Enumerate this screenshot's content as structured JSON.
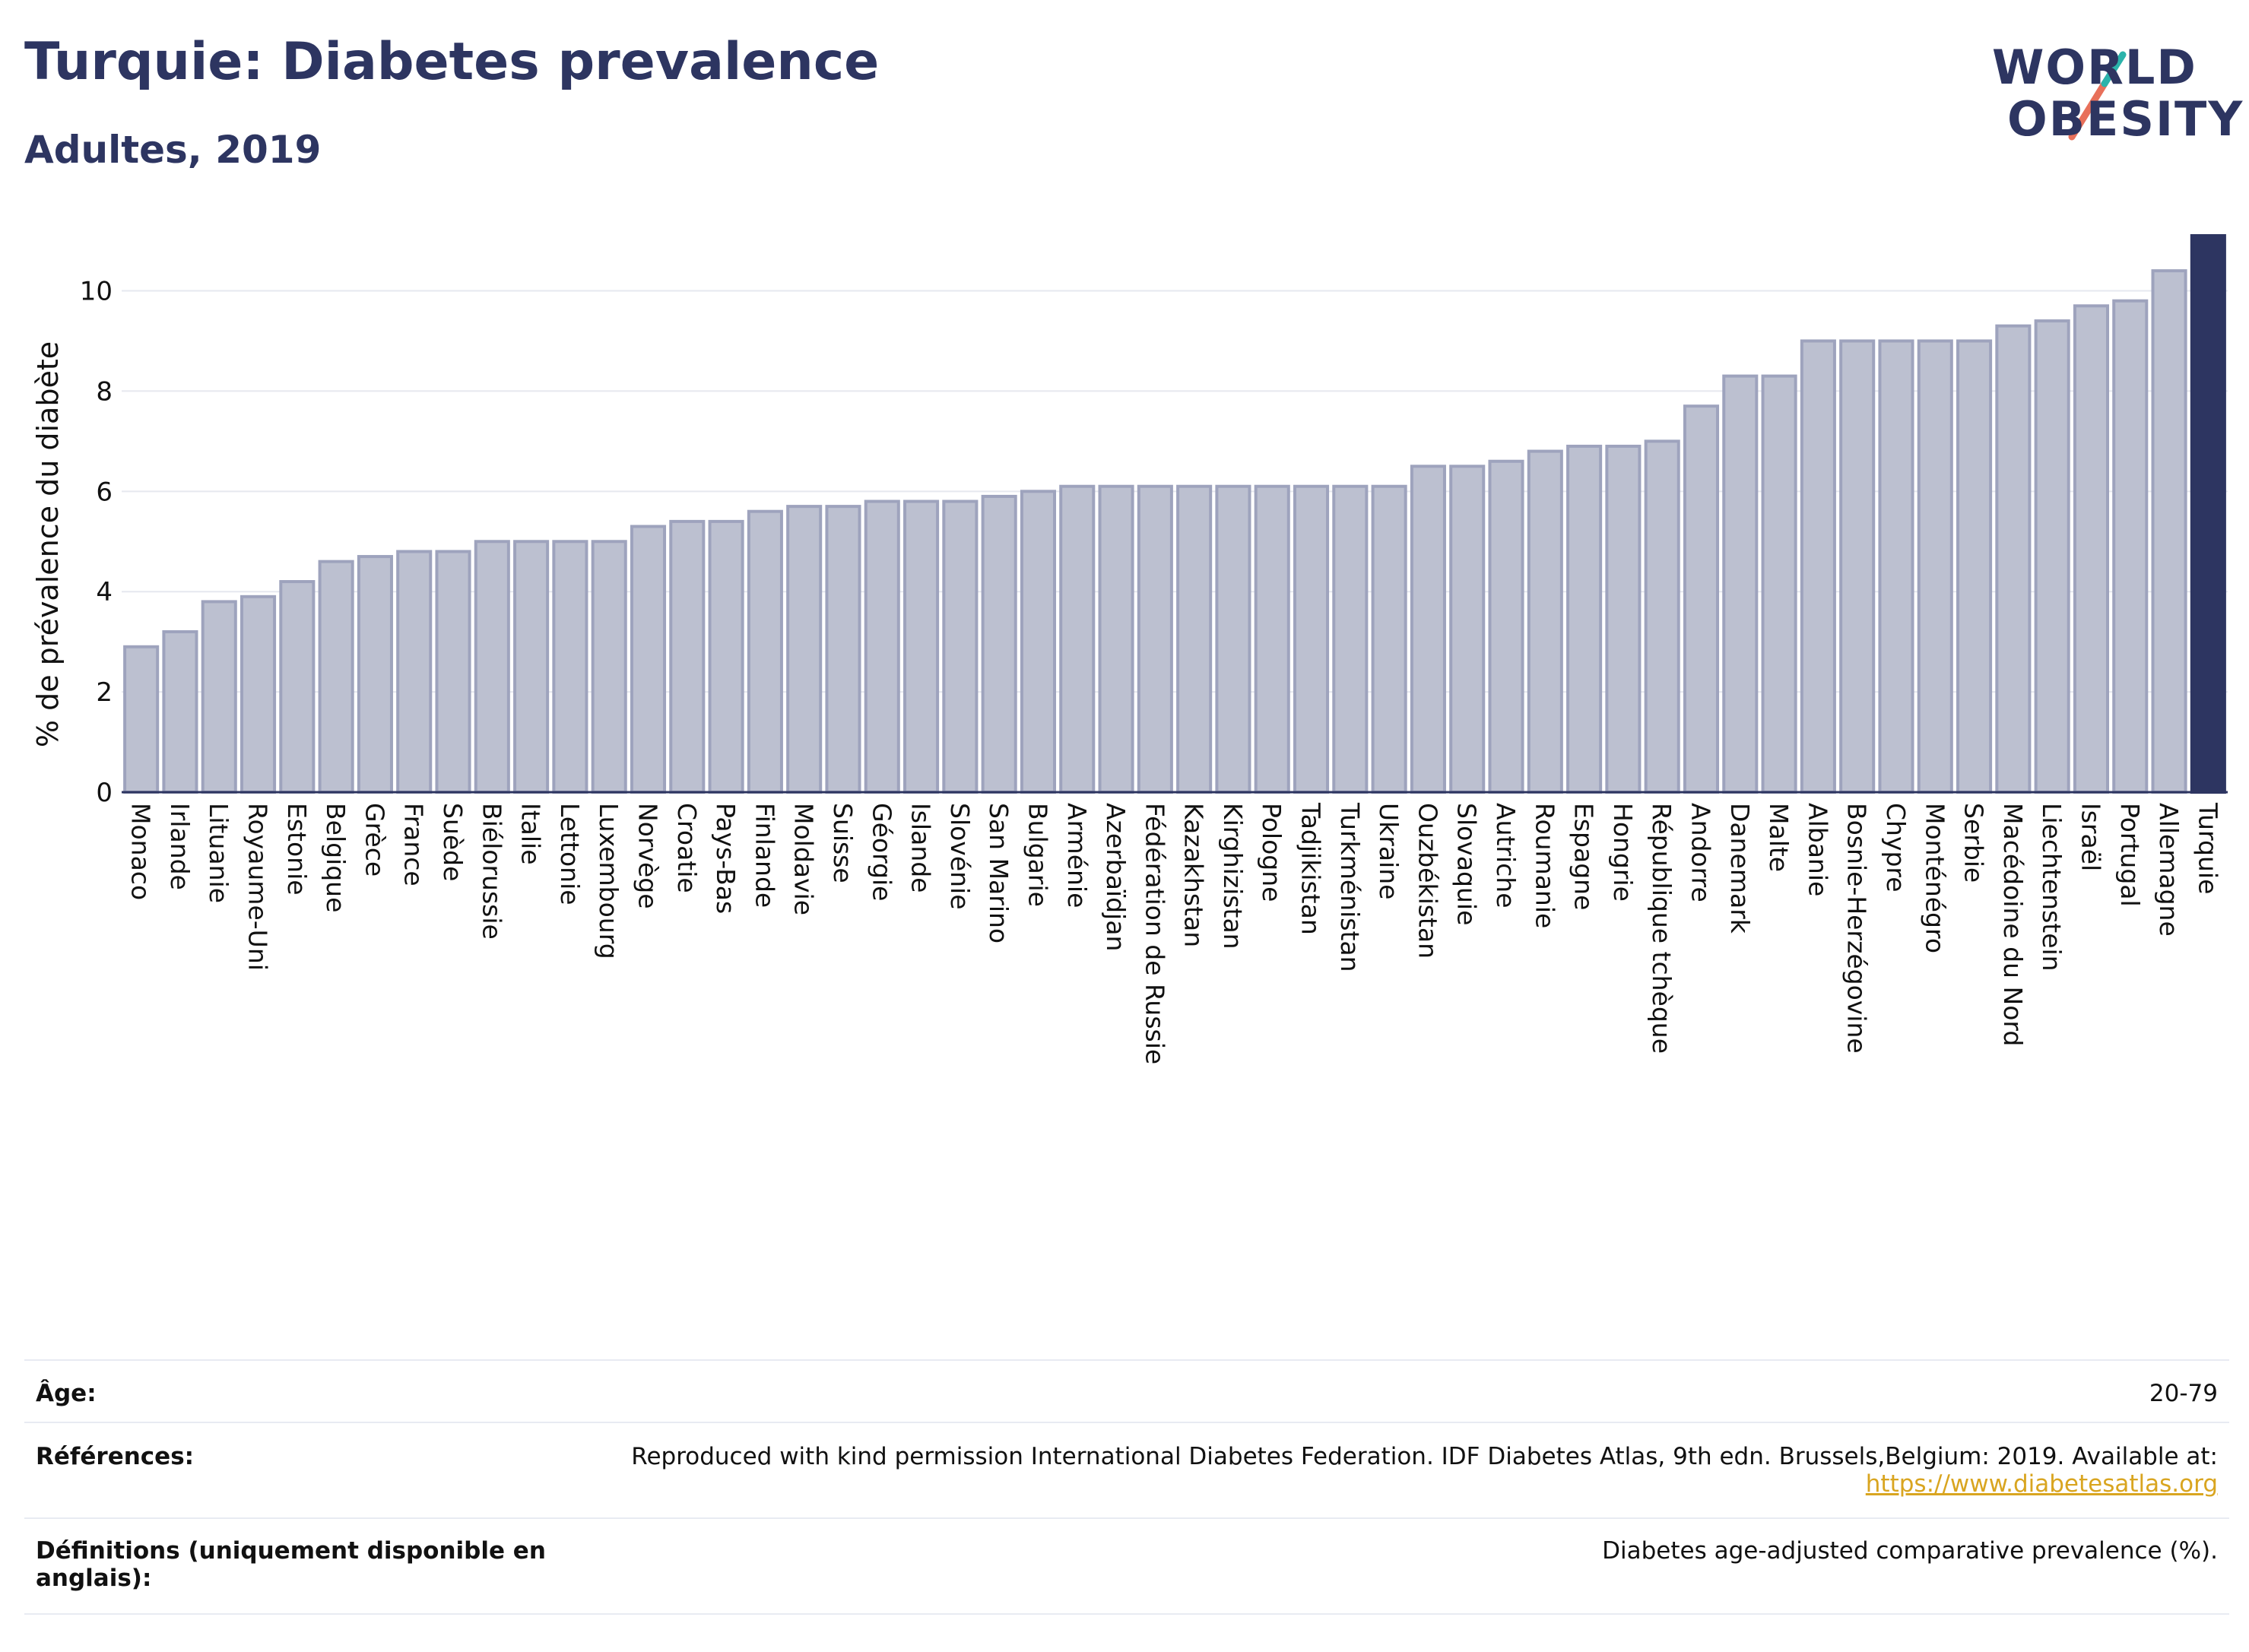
{
  "header": {
    "title": "Turquie: Diabetes prevalence",
    "subtitle": "Adultes, 2019",
    "logo_line1": "WORLD",
    "logo_line2": "OBESITY"
  },
  "colors": {
    "highlight": "#2d3561",
    "bar_fill": "#bcc0d0",
    "bar_stroke": "#9ea3bd",
    "grid": "#e6e8ef",
    "link": "#d9a520",
    "logo_teal": "#2bb3ab",
    "logo_coral": "#e8705a"
  },
  "chart_data": {
    "type": "bar",
    "ylabel": "% de prévalence du diabète",
    "ylim": [
      0,
      11.1
    ],
    "yticks": [
      0,
      2,
      4,
      6,
      8,
      10
    ],
    "grid": true,
    "highlight": "Turquie",
    "categories": [
      "Monaco",
      "Irlande",
      "Lituanie",
      "Royaume-Uni",
      "Estonie",
      "Belgique",
      "Grèce",
      "France",
      "Suède",
      "Biélorussie",
      "Italie",
      "Lettonie",
      "Luxembourg",
      "Norvège",
      "Croatie",
      "Pays-Bas",
      "Finlande",
      "Moldavie",
      "Suisse",
      "Géorgie",
      "Islande",
      "Slovénie",
      "San Marino",
      "Bulgarie",
      "Arménie",
      "Azerbaïdjan",
      "Fédération de Russie",
      "Kazakhstan",
      "Kirghizistan",
      "Pologne",
      "Tadjikistan",
      "Turkménistan",
      "Ukraine",
      "Ouzbékistan",
      "Slovaquie",
      "Autriche",
      "Roumanie",
      "Espagne",
      "Hongrie",
      "République tchèque",
      "Andorre",
      "Danemark",
      "Malte",
      "Albanie",
      "Bosnie-Herzégovine",
      "Chypre",
      "Monténégro",
      "Serbie",
      "Macédoine du Nord",
      "Liechtenstein",
      "Israël",
      "Portugal",
      "Allemagne",
      "Turquie"
    ],
    "values": [
      2.9,
      3.2,
      3.8,
      3.9,
      4.2,
      4.6,
      4.7,
      4.8,
      4.8,
      5.0,
      5.0,
      5.0,
      5.0,
      5.3,
      5.4,
      5.4,
      5.6,
      5.7,
      5.7,
      5.8,
      5.8,
      5.8,
      5.9,
      6.0,
      6.1,
      6.1,
      6.1,
      6.1,
      6.1,
      6.1,
      6.1,
      6.1,
      6.1,
      6.5,
      6.5,
      6.6,
      6.8,
      6.9,
      6.9,
      7.0,
      7.7,
      8.3,
      8.3,
      9.0,
      9.0,
      9.0,
      9.0,
      9.0,
      9.3,
      9.4,
      9.7,
      9.8,
      10.4,
      11.1
    ]
  },
  "info": {
    "age_label": "Âge:",
    "age_value": "20-79",
    "ref_label": "Références:",
    "ref_value": "Reproduced with kind permission International Diabetes Federation. IDF Diabetes Atlas, 9th edn. Brussels,Belgium: 2019. Available at:",
    "ref_link": "https://www.diabetesatlas.org",
    "def_label_1": "Définitions (uniquement disponible en",
    "def_label_2": "anglais):",
    "def_value": "Diabetes age-adjusted comparative prevalence (%)."
  }
}
